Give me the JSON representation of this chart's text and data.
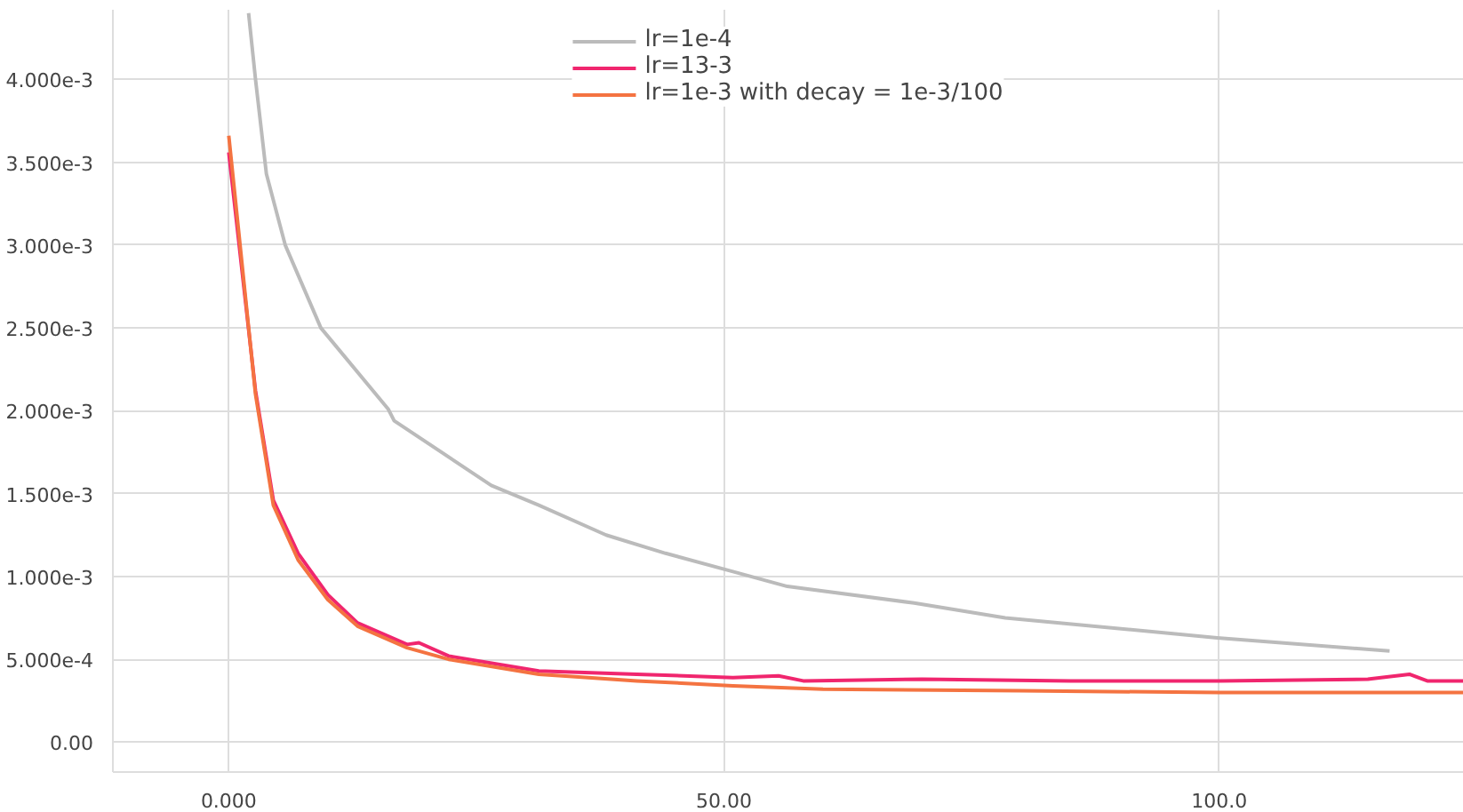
{
  "chart_data": {
    "type": "line",
    "xlim": [
      -11.7,
      124.7
    ],
    "ylim": [
      -0.00018,
      0.00442
    ],
    "xticks": [
      {
        "value": 0,
        "label": "0.000"
      },
      {
        "value": 50,
        "label": "50.00"
      },
      {
        "value": 100,
        "label": "100.0"
      }
    ],
    "yticks": [
      {
        "value": 0,
        "label": "0.00"
      },
      {
        "value": 0.0005,
        "label": "5.000e-4"
      },
      {
        "value": 0.001,
        "label": "1.000e-3"
      },
      {
        "value": 0.0015,
        "label": "1.500e-3"
      },
      {
        "value": 0.002,
        "label": "2.000e-3"
      },
      {
        "value": 0.0025,
        "label": "2.500e-3"
      },
      {
        "value": 0.003,
        "label": "3.000e-3"
      },
      {
        "value": 0.0035,
        "label": "3.500e-3"
      },
      {
        "value": 0.004,
        "label": "4.000e-3"
      }
    ],
    "grid": true,
    "legend": "top",
    "line_style": "solid",
    "series": [
      {
        "name": "lr=1e-4",
        "color": "#bbbbbb",
        "x": [
          2.0,
          2.7,
          3.8,
          5.7,
          9.3,
          16.1,
          16.7,
          26.5,
          31.3,
          38.1,
          44.1,
          50.9,
          56.4,
          69.2,
          78.4,
          99.8,
          117.2
        ],
        "values": [
          0.0044,
          0.004,
          0.00343,
          0.003,
          0.0025,
          0.00201,
          0.00194,
          0.00155,
          0.00143,
          0.00125,
          0.00114,
          0.00103,
          0.00094,
          0.00084,
          0.00075,
          0.00063,
          0.00055
        ]
      },
      {
        "name": "lr=13-3",
        "color": "#f0266e",
        "x": [
          0,
          2.7,
          4.5,
          7.0,
          10.0,
          13.0,
          18.0,
          19.2,
          22.2,
          31.3,
          41.2,
          50.9,
          55.5,
          58,
          70,
          85,
          100,
          115,
          119.2,
          121,
          124.7
        ],
        "values": [
          0.00356,
          0.00212,
          0.00146,
          0.00114,
          0.00089,
          0.00072,
          0.00059,
          0.0006,
          0.00052,
          0.00043,
          0.00041,
          0.00039,
          0.0004,
          0.00037,
          0.00038,
          0.00037,
          0.00037,
          0.00038,
          0.00041,
          0.00037,
          0.00037
        ]
      },
      {
        "name": "lr=1e-3 with decay = 1e-3/100",
        "color": "#f47341",
        "x": [
          0,
          2.7,
          4.5,
          7.0,
          10.0,
          13.0,
          18.0,
          22.2,
          31.3,
          41.2,
          50.9,
          60,
          80,
          100,
          124.7
        ],
        "values": [
          0.00366,
          0.0021,
          0.00143,
          0.0011,
          0.00086,
          0.0007,
          0.00057,
          0.0005,
          0.00041,
          0.00037,
          0.00034,
          0.00032,
          0.00031,
          0.0003,
          0.0003
        ]
      }
    ]
  }
}
